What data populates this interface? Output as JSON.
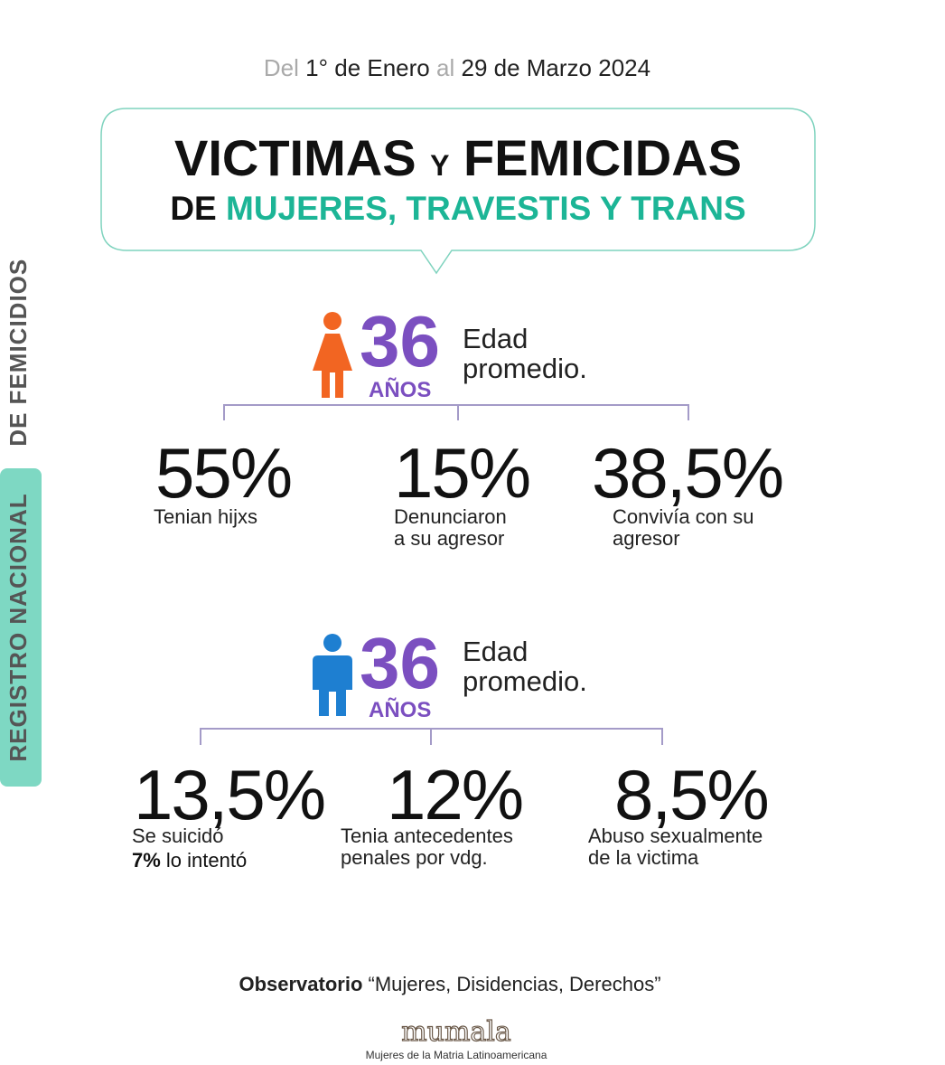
{
  "header": {
    "date": [
      "Del",
      "1° de Enero",
      "al",
      "29 de Marzo 2024"
    ],
    "title": {
      "line1": [
        "VICTIMAS",
        "Y",
        "FEMICIDAS"
      ],
      "line2": [
        "DE",
        "MUJERES, TRAVESTIS Y TRANS"
      ]
    }
  },
  "side_label": [
    "REGISTRO NACIONAL",
    "DE FEMICIDIOS"
  ],
  "victims": {
    "age": "36",
    "age_unit": "AÑOS",
    "age_label": [
      "Edad",
      "promedio."
    ],
    "stats": [
      {
        "value": "55%",
        "lines": [
          "Tenian hijxs"
        ]
      },
      {
        "value": "15%",
        "lines": [
          "Denunciaron",
          "a su agresor"
        ]
      },
      {
        "value": "38,5%",
        "lines": [
          "Convivía con su",
          "agresor"
        ]
      }
    ]
  },
  "aggressors": {
    "age": "36",
    "age_unit": "AÑOS",
    "age_label": [
      "Edad",
      "promedio."
    ],
    "stats": [
      {
        "value": "13,5%",
        "lines": [
          "Se suicidó"
        ],
        "extra": [
          "7%",
          "lo intentó"
        ]
      },
      {
        "value": "12%",
        "lines": [
          "Tenia antecedentes",
          "penales por vdg."
        ]
      },
      {
        "value": "8,5%",
        "lines": [
          "Abuso sexualmente",
          "de la victima"
        ]
      }
    ]
  },
  "footer": {
    "observatory": [
      "Observatorio",
      "“Mujeres, Disidencias, Derechos”"
    ],
    "logo": "mumala",
    "logo_caption": "Mujeres de la Matria Latinoamericana"
  }
}
